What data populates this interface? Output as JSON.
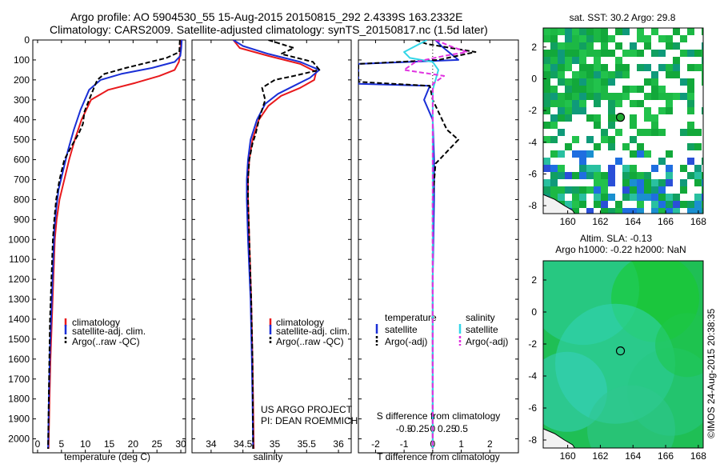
{
  "header": {
    "line1": "Argo profile: AO 5904530_55 15-Aug-2015 20150815_292 2.4339S 163.2332E",
    "line2": "Climatology: CARS2009. Satellite-adjusted climatology: synTS_20150817.nc (1.5d later)"
  },
  "colors": {
    "climatology": "#e8191c",
    "satellite": "#1a2fd6",
    "argo": "#000000",
    "sal_satellite": "#33d6e8",
    "sal_argo": "#e033e0"
  },
  "chart_data": [
    {
      "type": "line",
      "xlabel": "temperature (deg C)",
      "ylabel": "",
      "xlim": [
        -1,
        31
      ],
      "ylim": [
        0,
        2070
      ],
      "xticks": [
        0,
        5,
        10,
        15,
        20,
        25,
        30
      ],
      "yticks": [
        0,
        100,
        200,
        300,
        400,
        500,
        600,
        700,
        800,
        900,
        1000,
        1100,
        1200,
        1300,
        1400,
        1500,
        1600,
        1700,
        1800,
        1900,
        2000
      ],
      "legend": [
        "climatology",
        "satellite-adj. clim.",
        "Argo(..raw -QC)"
      ],
      "series": [
        {
          "name": "climatology",
          "x": [
            30.0,
            29.9,
            29.6,
            28.7,
            25.5,
            20.5,
            14.8,
            11.2,
            9.2,
            7.8,
            6.6,
            5.6,
            4.6,
            4.0,
            3.6,
            3.3,
            3.0,
            2.7,
            2.5,
            2.3
          ],
          "y": [
            0,
            60,
            110,
            150,
            180,
            215,
            250,
            300,
            400,
            500,
            600,
            700,
            800,
            900,
            1000,
            1200,
            1400,
            1600,
            1800,
            2050
          ]
        },
        {
          "name": "satellite-adj. clim.",
          "x": [
            30.2,
            30.1,
            29.9,
            28.7,
            24.0,
            17.5,
            13.2,
            10.8,
            9.0,
            7.6,
            6.4,
            5.4,
            4.4,
            3.9,
            3.5,
            3.2,
            2.9,
            2.6,
            2.4,
            2.2
          ],
          "y": [
            0,
            40,
            80,
            110,
            140,
            170,
            200,
            250,
            350,
            450,
            550,
            650,
            750,
            850,
            950,
            1150,
            1350,
            1550,
            1750,
            2050
          ]
        },
        {
          "name": "Argo(..raw -QC)",
          "x": [
            29.8,
            29.7,
            27.0,
            18.5,
            14.0,
            12.5,
            11.8,
            10.8,
            9.8,
            9.5,
            8.6,
            7.4,
            6.5,
            5.6,
            4.6,
            3.9,
            3.5,
            3.2,
            2.9,
            2.6,
            2.4,
            2.2
          ],
          "y": [
            0,
            60,
            90,
            140,
            170,
            200,
            240,
            300,
            360,
            420,
            470,
            520,
            560,
            600,
            700,
            800,
            900,
            1000,
            1200,
            1400,
            1700,
            2050
          ]
        }
      ]
    },
    {
      "type": "line",
      "xlabel": "salinity",
      "xlim": [
        33.7,
        36.2
      ],
      "ylim": [
        0,
        2070
      ],
      "xticks": [
        34,
        34.5,
        35,
        35.5,
        36
      ],
      "legend": [
        "climatology",
        "satellite-adj. clim.",
        "Argo(..raw -QC)"
      ],
      "annotation": [
        "US ARGO PROJECT",
        "PI: DEAN ROEMMICH"
      ],
      "series": [
        {
          "name": "climatology",
          "x": [
            34.35,
            34.45,
            34.9,
            35.4,
            35.65,
            35.62,
            35.4,
            35.1,
            34.9,
            34.75,
            34.65,
            34.6,
            34.58,
            34.58,
            34.6,
            34.63,
            34.65,
            34.66,
            34.67
          ],
          "y": [
            0,
            40,
            80,
            120,
            160,
            200,
            240,
            280,
            330,
            400,
            500,
            600,
            700,
            800,
            1000,
            1300,
            1600,
            1800,
            2050
          ]
        },
        {
          "name": "satellite-adj. clim.",
          "x": [
            34.35,
            34.5,
            34.9,
            35.4,
            35.7,
            35.55,
            35.3,
            35.05,
            34.85,
            34.72,
            34.62,
            34.58,
            34.56,
            34.56,
            34.58,
            34.62,
            34.64,
            34.65,
            34.66
          ],
          "y": [
            0,
            30,
            70,
            110,
            150,
            190,
            230,
            270,
            320,
            400,
            500,
            600,
            700,
            800,
            1000,
            1300,
            1600,
            1800,
            2050
          ]
        },
        {
          "name": "Argo(..raw -QC)",
          "x": [
            34.9,
            35.3,
            35.1,
            35.6,
            35.7,
            35.3,
            35.0,
            34.8,
            34.85,
            34.75,
            34.7,
            34.65,
            34.6,
            34.58,
            34.58,
            34.6,
            34.63,
            34.65,
            34.66
          ],
          "y": [
            0,
            40,
            70,
            110,
            150,
            180,
            200,
            240,
            300,
            400,
            470,
            520,
            600,
            700,
            800,
            1000,
            1300,
            1600,
            2050
          ]
        }
      ]
    },
    {
      "type": "line",
      "xlabel": "T difference from climatology",
      "xlabel2": "S difference from climatology",
      "xlim": [
        -2.6,
        3.0
      ],
      "ylim": [
        0,
        2070
      ],
      "xticks": [
        -2,
        -1,
        0,
        1,
        2
      ],
      "xticks2": [
        -0.5,
        -0.25,
        0,
        0.25,
        0.5
      ],
      "legend_left": [
        "temperature",
        "satellite",
        "Argo(-adj)"
      ],
      "legend_right": [
        "salinity",
        "satellite",
        "Argo(-adj)"
      ],
      "series": [
        {
          "name": "temperature satellite",
          "x": [
            0.1,
            0.3,
            0.9,
            -2.6,
            -2.6,
            -0.1,
            -0.3,
            0.0,
            0.05,
            0.05,
            0.0,
            0.0,
            0.0
          ],
          "y": [
            0,
            30,
            100,
            120,
            220,
            230,
            300,
            400,
            600,
            800,
            1200,
            1600,
            2050
          ]
        },
        {
          "name": "temperature Argo(-adj)",
          "x": [
            -0.6,
            -0.2,
            1.5,
            0.2,
            -2.6,
            -2.6,
            -0.1,
            0.0,
            0.5,
            0.9,
            0.5,
            0.1,
            0.0,
            0.0,
            0.0,
            0.0
          ],
          "y": [
            0,
            20,
            60,
            100,
            120,
            210,
            230,
            300,
            450,
            500,
            560,
            620,
            800,
            1200,
            1600,
            2050
          ]
        },
        {
          "name": "salinity satellite",
          "x": [
            -0.1,
            -0.5,
            -0.4,
            0.0,
            0.1,
            0.0,
            0.0,
            0.0,
            0.0,
            0.0
          ],
          "y": [
            0,
            60,
            90,
            110,
            150,
            250,
            400,
            800,
            1400,
            2050
          ]
        },
        {
          "name": "salinity Argo(-adj)",
          "x": [
            0.05,
            0.3,
            0.6,
            0.2,
            -0.3,
            -0.5,
            0.2,
            0.0,
            0.0,
            0.0,
            0.0
          ],
          "y": [
            0,
            30,
            60,
            80,
            110,
            150,
            180,
            220,
            400,
            1000,
            2050
          ]
        }
      ]
    },
    {
      "type": "heatmap",
      "title": "sat. SST: 30.2  Argo: 29.8",
      "xlim": [
        158.5,
        168.3
      ],
      "ylim": [
        -8.5,
        3.2
      ],
      "xticks": [
        160,
        162,
        164,
        166,
        168
      ],
      "yticks": [
        2,
        0,
        -2,
        -4,
        -6,
        -8
      ],
      "marker": {
        "lon": 163.23,
        "lat": -2.43
      }
    },
    {
      "type": "heatmap",
      "title": "Altim. SLA: -0.13",
      "subtitle": "Argo h1000: -0.22 h2000: NaN",
      "xlim": [
        158.5,
        168.3
      ],
      "ylim": [
        -8.5,
        3.2
      ],
      "xticks": [
        160,
        162,
        164,
        166,
        168
      ],
      "yticks": [
        2,
        0,
        -2,
        -4,
        -6,
        -8
      ],
      "marker": {
        "lon": 163.23,
        "lat": -2.43
      }
    }
  ],
  "footer": {
    "credit": "©IMOS 24-Aug-2015 20:38:35"
  }
}
